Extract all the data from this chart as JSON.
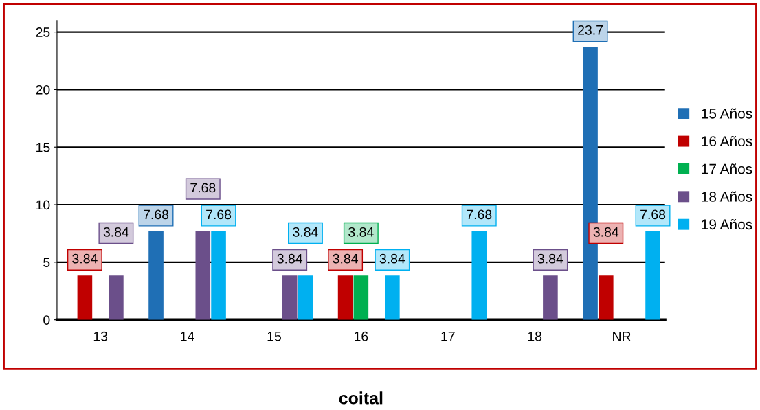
{
  "chart_data": {
    "type": "bar",
    "xlabel": "coital",
    "categories": [
      "13",
      "14",
      "15",
      "16",
      "17",
      "18",
      "NR"
    ],
    "series": [
      {
        "name": "15 Años",
        "color": "#1f6fb5",
        "values": [
          null,
          7.68,
          null,
          null,
          null,
          null,
          23.7
        ]
      },
      {
        "name": "16 Años",
        "color": "#c00000",
        "values": [
          3.84,
          null,
          null,
          3.84,
          null,
          null,
          3.84
        ]
      },
      {
        "name": "17 Años",
        "color": "#00b050",
        "values": [
          null,
          null,
          null,
          3.84,
          null,
          null,
          null
        ]
      },
      {
        "name": "18 Años",
        "color": "#6b4f8a",
        "values": [
          3.84,
          7.68,
          3.84,
          null,
          null,
          3.84,
          null
        ]
      },
      {
        "name": "19 Años",
        "color": "#00b0f0",
        "values": [
          null,
          7.68,
          3.84,
          3.84,
          7.68,
          null,
          7.68
        ]
      }
    ],
    "ylim": [
      0,
      26
    ],
    "yticks": [
      0,
      5,
      10,
      15,
      20,
      25
    ],
    "grid": "y",
    "legend": "right",
    "data_labels": true
  }
}
